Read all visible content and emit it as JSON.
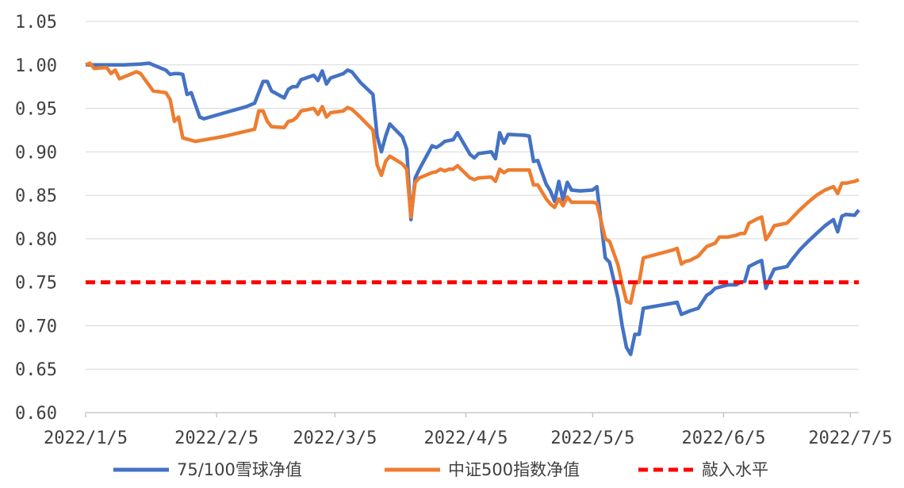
{
  "chart_data": {
    "type": "line",
    "title": "",
    "xlabel": "",
    "ylabel": "",
    "x_range": [
      "2022-01-05",
      "2022-07-07"
    ],
    "ylim": [
      0.6,
      1.05
    ],
    "y_ticks": [
      "0.60",
      "0.65",
      "0.70",
      "0.75",
      "0.80",
      "0.85",
      "0.90",
      "0.95",
      "1.00",
      "1.05"
    ],
    "x_ticks": [
      {
        "date": "2022-01-05",
        "label": "2022/1/5"
      },
      {
        "date": "2022-02-05",
        "label": "2022/2/5"
      },
      {
        "date": "2022-03-05",
        "label": "2022/3/5"
      },
      {
        "date": "2022-04-05",
        "label": "2022/4/5"
      },
      {
        "date": "2022-05-05",
        "label": "2022/5/5"
      },
      {
        "date": "2022-06-05",
        "label": "2022/6/5"
      },
      {
        "date": "2022-07-05",
        "label": "2022/7/5"
      }
    ],
    "grid": {
      "horizontal": true,
      "vertical": false
    },
    "legend_position": "bottom",
    "series": [
      {
        "name": "75/100雪球净值",
        "color": "#4472C4",
        "style": "solid",
        "points": [
          [
            "2022-01-05",
            1.0
          ],
          [
            "2022-01-06",
            1.0
          ],
          [
            "2022-01-10",
            1.0
          ],
          [
            "2022-01-14",
            1.0
          ],
          [
            "2022-01-18",
            1.001
          ],
          [
            "2022-01-20",
            1.002
          ],
          [
            "2022-01-21",
            1.0
          ],
          [
            "2022-01-24",
            0.994
          ],
          [
            "2022-01-25",
            0.989
          ],
          [
            "2022-01-26",
            0.99
          ],
          [
            "2022-01-27",
            0.99
          ],
          [
            "2022-01-28",
            0.989
          ],
          [
            "2022-01-29",
            0.966
          ],
          [
            "2022-01-30",
            0.968
          ],
          [
            "2022-02-01",
            0.94
          ],
          [
            "2022-02-02",
            0.938
          ],
          [
            "2022-02-07",
            0.945
          ],
          [
            "2022-02-12",
            0.952
          ],
          [
            "2022-02-14",
            0.956
          ],
          [
            "2022-02-16",
            0.981
          ],
          [
            "2022-02-17",
            0.981
          ],
          [
            "2022-02-18",
            0.97
          ],
          [
            "2022-02-21",
            0.962
          ],
          [
            "2022-02-22",
            0.972
          ],
          [
            "2022-02-23",
            0.975
          ],
          [
            "2022-02-24",
            0.975
          ],
          [
            "2022-02-25",
            0.983
          ],
          [
            "2022-02-28",
            0.988
          ],
          [
            "2022-03-01",
            0.982
          ],
          [
            "2022-03-02",
            0.993
          ],
          [
            "2022-03-03",
            0.978
          ],
          [
            "2022-03-04",
            0.985
          ],
          [
            "2022-03-07",
            0.99
          ],
          [
            "2022-03-08",
            0.994
          ],
          [
            "2022-03-09",
            0.992
          ],
          [
            "2022-03-11",
            0.98
          ],
          [
            "2022-03-14",
            0.966
          ],
          [
            "2022-03-15",
            0.918
          ],
          [
            "2022-03-16",
            0.9
          ],
          [
            "2022-03-17",
            0.918
          ],
          [
            "2022-03-18",
            0.932
          ],
          [
            "2022-03-21",
            0.917
          ],
          [
            "2022-03-22",
            0.903
          ],
          [
            "2022-03-23",
            0.822
          ],
          [
            "2022-03-24",
            0.87
          ],
          [
            "2022-03-25",
            0.88
          ],
          [
            "2022-03-28",
            0.907
          ],
          [
            "2022-03-29",
            0.905
          ],
          [
            "2022-03-30",
            0.908
          ],
          [
            "2022-03-31",
            0.912
          ],
          [
            "2022-04-01",
            0.913
          ],
          [
            "2022-04-02",
            0.914
          ],
          [
            "2022-04-03",
            0.922
          ],
          [
            "2022-04-06",
            0.897
          ],
          [
            "2022-04-07",
            0.893
          ],
          [
            "2022-04-08",
            0.898
          ],
          [
            "2022-04-11",
            0.9
          ],
          [
            "2022-04-12",
            0.892
          ],
          [
            "2022-04-13",
            0.922
          ],
          [
            "2022-04-14",
            0.91
          ],
          [
            "2022-04-15",
            0.92
          ],
          [
            "2022-04-19",
            0.919
          ],
          [
            "2022-04-20",
            0.918
          ],
          [
            "2022-04-21",
            0.889
          ],
          [
            "2022-04-22",
            0.89
          ],
          [
            "2022-04-24",
            0.863
          ],
          [
            "2022-04-25",
            0.855
          ],
          [
            "2022-04-26",
            0.843
          ],
          [
            "2022-04-27",
            0.866
          ],
          [
            "2022-04-28",
            0.845
          ],
          [
            "2022-04-29",
            0.865
          ],
          [
            "2022-04-30",
            0.856
          ],
          [
            "2022-05-02",
            0.855
          ],
          [
            "2022-05-05",
            0.856
          ],
          [
            "2022-05-06",
            0.86
          ],
          [
            "2022-05-08",
            0.778
          ],
          [
            "2022-05-09",
            0.773
          ],
          [
            "2022-05-11",
            0.732
          ],
          [
            "2022-05-12",
            0.7
          ],
          [
            "2022-05-13",
            0.675
          ],
          [
            "2022-05-14",
            0.667
          ],
          [
            "2022-05-15",
            0.69
          ],
          [
            "2022-05-16",
            0.69
          ],
          [
            "2022-05-17",
            0.72
          ],
          [
            "2022-05-24",
            0.726
          ],
          [
            "2022-05-25",
            0.727
          ],
          [
            "2022-05-26",
            0.713
          ],
          [
            "2022-05-27",
            0.715
          ],
          [
            "2022-05-28",
            0.717
          ],
          [
            "2022-05-30",
            0.72
          ],
          [
            "2022-06-01",
            0.735
          ],
          [
            "2022-06-02",
            0.738
          ],
          [
            "2022-06-03",
            0.743
          ],
          [
            "2022-06-06",
            0.747
          ],
          [
            "2022-06-08",
            0.747
          ],
          [
            "2022-06-09",
            0.75
          ],
          [
            "2022-06-10",
            0.751
          ],
          [
            "2022-06-11",
            0.768
          ],
          [
            "2022-06-13",
            0.773
          ],
          [
            "2022-06-14",
            0.775
          ],
          [
            "2022-06-15",
            0.743
          ],
          [
            "2022-06-16",
            0.755
          ],
          [
            "2022-06-17",
            0.765
          ],
          [
            "2022-06-20",
            0.768
          ],
          [
            "2022-06-21",
            0.775
          ],
          [
            "2022-06-23",
            0.787
          ],
          [
            "2022-06-25",
            0.797
          ],
          [
            "2022-06-27",
            0.806
          ],
          [
            "2022-06-29",
            0.815
          ],
          [
            "2022-07-01",
            0.822
          ],
          [
            "2022-07-02",
            0.808
          ],
          [
            "2022-07-03",
            0.826
          ],
          [
            "2022-07-04",
            0.828
          ],
          [
            "2022-07-06",
            0.827
          ],
          [
            "2022-07-07",
            0.833
          ]
        ]
      },
      {
        "name": "中证500指数净值",
        "color": "#ED7D31",
        "style": "solid",
        "points": [
          [
            "2022-01-05",
            1.0
          ],
          [
            "2022-01-06",
            1.002
          ],
          [
            "2022-01-07",
            0.996
          ],
          [
            "2022-01-10",
            0.997
          ],
          [
            "2022-01-11",
            0.99
          ],
          [
            "2022-01-12",
            0.994
          ],
          [
            "2022-01-13",
            0.984
          ],
          [
            "2022-01-17",
            0.992
          ],
          [
            "2022-01-18",
            0.99
          ],
          [
            "2022-01-21",
            0.97
          ],
          [
            "2022-01-24",
            0.968
          ],
          [
            "2022-01-25",
            0.96
          ],
          [
            "2022-01-26",
            0.935
          ],
          [
            "2022-01-27",
            0.94
          ],
          [
            "2022-01-28",
            0.916
          ],
          [
            "2022-01-31",
            0.912
          ],
          [
            "2022-02-07",
            0.918
          ],
          [
            "2022-02-14",
            0.926
          ],
          [
            "2022-02-15",
            0.947
          ],
          [
            "2022-02-16",
            0.947
          ],
          [
            "2022-02-17",
            0.935
          ],
          [
            "2022-02-18",
            0.929
          ],
          [
            "2022-02-21",
            0.928
          ],
          [
            "2022-02-22",
            0.935
          ],
          [
            "2022-02-23",
            0.936
          ],
          [
            "2022-02-24",
            0.94
          ],
          [
            "2022-02-25",
            0.947
          ],
          [
            "2022-02-28",
            0.95
          ],
          [
            "2022-03-01",
            0.943
          ],
          [
            "2022-03-02",
            0.952
          ],
          [
            "2022-03-03",
            0.94
          ],
          [
            "2022-03-04",
            0.945
          ],
          [
            "2022-03-07",
            0.947
          ],
          [
            "2022-03-08",
            0.951
          ],
          [
            "2022-03-09",
            0.949
          ],
          [
            "2022-03-11",
            0.94
          ],
          [
            "2022-03-14",
            0.925
          ],
          [
            "2022-03-15",
            0.885
          ],
          [
            "2022-03-16",
            0.873
          ],
          [
            "2022-03-17",
            0.889
          ],
          [
            "2022-03-18",
            0.895
          ],
          [
            "2022-03-21",
            0.886
          ],
          [
            "2022-03-22",
            0.88
          ],
          [
            "2022-03-23",
            0.825
          ],
          [
            "2022-03-24",
            0.865
          ],
          [
            "2022-03-25",
            0.87
          ],
          [
            "2022-03-28",
            0.876
          ],
          [
            "2022-03-29",
            0.877
          ],
          [
            "2022-03-30",
            0.88
          ],
          [
            "2022-03-31",
            0.878
          ],
          [
            "2022-04-01",
            0.88
          ],
          [
            "2022-04-02",
            0.88
          ],
          [
            "2022-04-03",
            0.884
          ],
          [
            "2022-04-06",
            0.87
          ],
          [
            "2022-04-07",
            0.868
          ],
          [
            "2022-04-08",
            0.87
          ],
          [
            "2022-04-11",
            0.871
          ],
          [
            "2022-04-12",
            0.866
          ],
          [
            "2022-04-13",
            0.88
          ],
          [
            "2022-04-14",
            0.876
          ],
          [
            "2022-04-15",
            0.879
          ],
          [
            "2022-04-19",
            0.879
          ],
          [
            "2022-04-20",
            0.879
          ],
          [
            "2022-04-21",
            0.862
          ],
          [
            "2022-04-22",
            0.862
          ],
          [
            "2022-04-24",
            0.846
          ],
          [
            "2022-04-25",
            0.84
          ],
          [
            "2022-04-26",
            0.836
          ],
          [
            "2022-04-27",
            0.846
          ],
          [
            "2022-04-28",
            0.838
          ],
          [
            "2022-04-29",
            0.848
          ],
          [
            "2022-04-30",
            0.842
          ],
          [
            "2022-05-02",
            0.842
          ],
          [
            "2022-05-05",
            0.842
          ],
          [
            "2022-05-06",
            0.841
          ],
          [
            "2022-05-08",
            0.8
          ],
          [
            "2022-05-09",
            0.797
          ],
          [
            "2022-05-11",
            0.77
          ],
          [
            "2022-05-12",
            0.748
          ],
          [
            "2022-05-13",
            0.728
          ],
          [
            "2022-05-14",
            0.726
          ],
          [
            "2022-05-15",
            0.749
          ],
          [
            "2022-05-16",
            0.75
          ],
          [
            "2022-05-17",
            0.778
          ],
          [
            "2022-05-24",
            0.787
          ],
          [
            "2022-05-25",
            0.789
          ],
          [
            "2022-05-26",
            0.771
          ],
          [
            "2022-05-27",
            0.774
          ],
          [
            "2022-05-28",
            0.775
          ],
          [
            "2022-05-30",
            0.78
          ],
          [
            "2022-06-01",
            0.791
          ],
          [
            "2022-06-02",
            0.793
          ],
          [
            "2022-06-03",
            0.795
          ],
          [
            "2022-06-04",
            0.802
          ],
          [
            "2022-06-06",
            0.802
          ],
          [
            "2022-06-08",
            0.804
          ],
          [
            "2022-06-09",
            0.806
          ],
          [
            "2022-06-10",
            0.806
          ],
          [
            "2022-06-11",
            0.818
          ],
          [
            "2022-06-13",
            0.823
          ],
          [
            "2022-06-14",
            0.825
          ],
          [
            "2022-06-15",
            0.799
          ],
          [
            "2022-06-16",
            0.806
          ],
          [
            "2022-06-17",
            0.815
          ],
          [
            "2022-06-20",
            0.818
          ],
          [
            "2022-06-21",
            0.823
          ],
          [
            "2022-06-23",
            0.833
          ],
          [
            "2022-06-25",
            0.842
          ],
          [
            "2022-06-27",
            0.85
          ],
          [
            "2022-06-29",
            0.856
          ],
          [
            "2022-07-01",
            0.86
          ],
          [
            "2022-07-02",
            0.852
          ],
          [
            "2022-07-03",
            0.864
          ],
          [
            "2022-07-04",
            0.864
          ],
          [
            "2022-07-06",
            0.866
          ],
          [
            "2022-07-07",
            0.868
          ]
        ]
      },
      {
        "name": "敲入水平",
        "color": "#FF0000",
        "style": "dashed",
        "points": [
          [
            "2022-01-05",
            0.75
          ],
          [
            "2022-07-07",
            0.75
          ]
        ]
      }
    ]
  }
}
